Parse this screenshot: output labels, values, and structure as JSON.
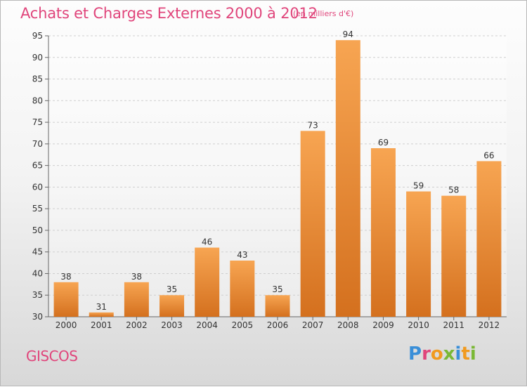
{
  "chart_data": {
    "type": "bar",
    "title": "Achats et Charges Externes 2000 à 2012",
    "subtitle": "(en milliers d'€)",
    "categories": [
      "2000",
      "2001",
      "2002",
      "2003",
      "2004",
      "2005",
      "2006",
      "2007",
      "2008",
      "2009",
      "2010",
      "2011",
      "2012"
    ],
    "values": [
      38,
      31,
      38,
      35,
      46,
      43,
      35,
      73,
      94,
      69,
      59,
      58,
      66
    ],
    "ylim": [
      30,
      95
    ],
    "yticks": [
      30,
      35,
      40,
      45,
      50,
      55,
      60,
      65,
      70,
      75,
      80,
      85,
      90,
      95
    ],
    "grid": true,
    "bar_color_top": "#f7a552",
    "bar_color_bottom": "#d4701e"
  },
  "footer": {
    "city": "GISCOS",
    "logo": "Proxiti"
  },
  "colors": {
    "title": "#e0457b",
    "logo_letters": [
      "#3a8fd8",
      "#e0457b",
      "#f19a1f",
      "#7ab835",
      "#3a8fd8",
      "#f19a1f",
      "#7ab835"
    ]
  }
}
